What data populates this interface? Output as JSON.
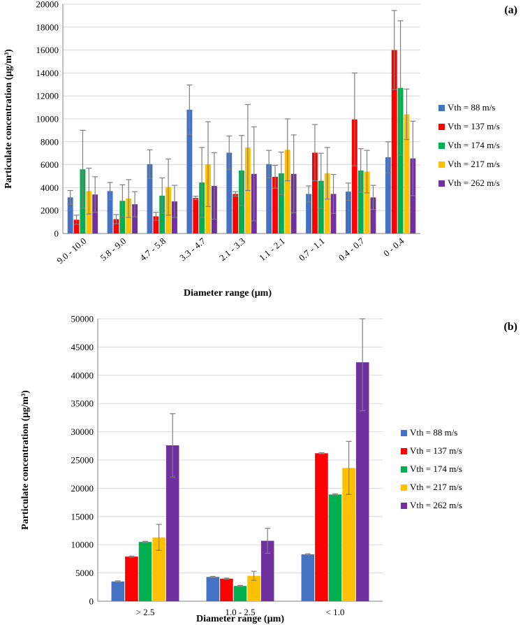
{
  "colors": {
    "series": [
      "#4472c4",
      "#ff0000",
      "#00b050",
      "#ffc000",
      "#7030a0"
    ],
    "grid": "#d9d9d9",
    "axis": "#7f7f7f",
    "error_bar": "#7f7f7f"
  },
  "chart_data": [
    {
      "type": "bar",
      "panel_label": "(a)",
      "title": "",
      "xlabel": "Diameter range (µm)",
      "ylabel": "Particulate concentration (µg/m³)",
      "ylim": [
        0,
        20000
      ],
      "ytick_step": 2000,
      "yticks": [
        "0",
        "2000",
        "4000",
        "6000",
        "8000",
        "10000",
        "12000",
        "14000",
        "16000",
        "18000",
        "20000"
      ],
      "grid": true,
      "legend_position": "right",
      "categories": [
        "9.0 - 10.0",
        "5.8 - 9.0",
        "4.7 - 5.8",
        "3.3 - 4.7",
        "2.1 - 3.3",
        "1.1 - 2.1",
        "0.7 - 1.1",
        "0.4 - 0.7",
        "0 - 0.4"
      ],
      "series": [
        {
          "name": "Vth = 88 m/s",
          "values": [
            3150,
            3700,
            6050,
            10800,
            7050,
            6050,
            3450,
            3650,
            6650
          ],
          "errors": [
            600,
            750,
            1250,
            2150,
            1450,
            1200,
            700,
            750,
            1350
          ]
        },
        {
          "name": "Vth = 137 m/s",
          "values": [
            1200,
            1250,
            1500,
            3100,
            3450,
            4950,
            7050,
            9950,
            16000
          ],
          "errors": [
            400,
            400,
            350,
            150,
            200,
            1000,
            2450,
            4050,
            3450
          ]
        },
        {
          "name": "Vth = 174 m/s",
          "values": [
            5600,
            2850,
            3300,
            4450,
            5500,
            5250,
            4600,
            5500,
            12700
          ],
          "errors": [
            3400,
            1400,
            1550,
            3050,
            3050,
            1850,
            2400,
            1900,
            5850
          ]
        },
        {
          "name": "Vth = 217 m/s",
          "values": [
            3700,
            3050,
            4050,
            6050,
            7500,
            7300,
            5250,
            5400,
            10400
          ],
          "errors": [
            2000,
            1650,
            2450,
            3700,
            3750,
            2700,
            2250,
            1850,
            2200
          ]
        },
        {
          "name": "Vth = 262 m/s",
          "values": [
            3400,
            2550,
            2800,
            4150,
            5200,
            5200,
            3450,
            3150,
            6550
          ],
          "errors": [
            1550,
            1100,
            1400,
            2900,
            4100,
            3400,
            1700,
            1050,
            3250
          ]
        }
      ]
    },
    {
      "type": "bar",
      "panel_label": "(b)",
      "title": "",
      "xlabel": "Diameter range (µm)",
      "ylabel": "Particulate concentration (µg/m³)",
      "ylim": [
        0,
        50000
      ],
      "ytick_step": 5000,
      "yticks": [
        "0",
        "5000",
        "10000",
        "15000",
        "20000",
        "25000",
        "30000",
        "35000",
        "40000",
        "45000",
        "50000"
      ],
      "grid": true,
      "legend_position": "right",
      "categories": [
        "> 2.5",
        "1.0 - 2.5",
        "< 1.0"
      ],
      "series": [
        {
          "name": "Vth = 88 m/s",
          "values": [
            3500,
            4300,
            8300
          ],
          "errors": [
            100,
            100,
            100
          ]
        },
        {
          "name": "Vth = 137 m/s",
          "values": [
            7900,
            4000,
            26200
          ],
          "errors": [
            100,
            100,
            100
          ]
        },
        {
          "name": "Vth = 174 m/s",
          "values": [
            10500,
            2700,
            18900
          ],
          "errors": [
            100,
            100,
            100
          ]
        },
        {
          "name": "Vth = 217 m/s",
          "values": [
            11300,
            4500,
            23600
          ],
          "errors": [
            2300,
            800,
            4700
          ]
        },
        {
          "name": "Vth = 262 m/s",
          "values": [
            27600,
            10700,
            42300
          ],
          "errors": [
            5600,
            2200,
            8600
          ]
        }
      ]
    }
  ]
}
